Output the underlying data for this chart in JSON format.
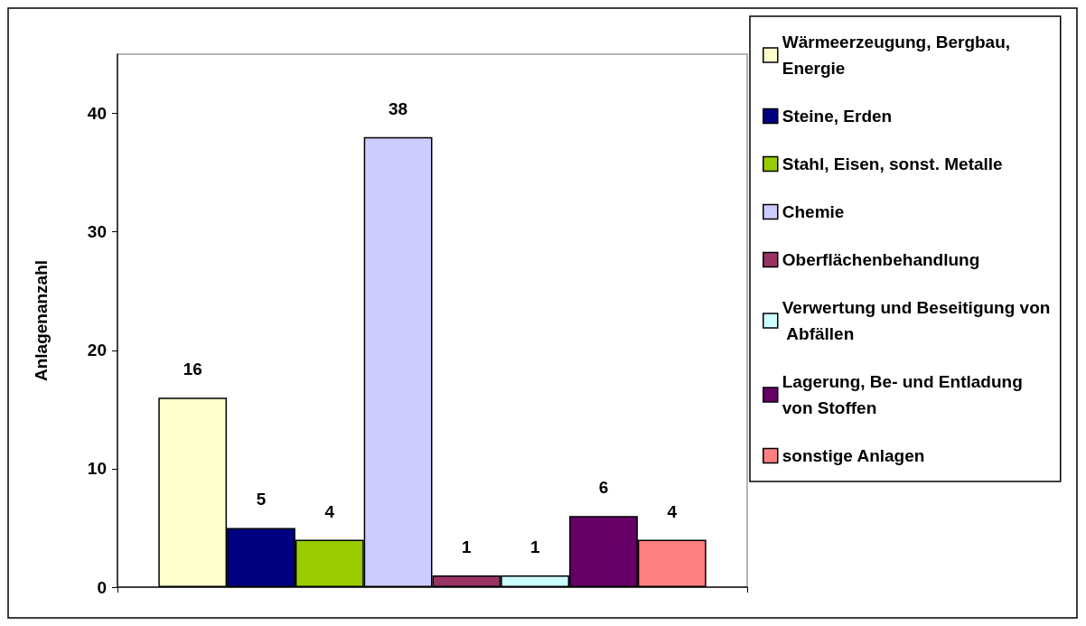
{
  "chart_data": {
    "type": "bar",
    "ylabel": "Anlagenanzahl",
    "categories": [
      null
    ],
    "ylim": [
      0,
      45
    ],
    "yticks": [
      0,
      10,
      20,
      30,
      40
    ],
    "grid": false,
    "legend": "right",
    "data_labels": true,
    "series": [
      {
        "name": "Wärmeerzeugung, Bergbau, Energie",
        "color": "#ffffcc",
        "values": [
          16
        ]
      },
      {
        "name": "Steine, Erden",
        "color": "#000080",
        "values": [
          5
        ]
      },
      {
        "name": "Stahl, Eisen, sonst. Metalle",
        "color": "#99cc00",
        "values": [
          4
        ]
      },
      {
        "name": "Chemie",
        "color": "#ccccff",
        "values": [
          38
        ]
      },
      {
        "name": "Oberflächenbehandlung",
        "color": "#993366",
        "values": [
          1
        ]
      },
      {
        "name": "Verwertung und Beseitigung von Abfällen",
        "color": "#ccffff",
        "values": [
          1
        ]
      },
      {
        "name": "Lagerung, Be- und Entladung von Stoffen",
        "color": "#660066",
        "values": [
          6
        ]
      },
      {
        "name": "sonstige Anlagen",
        "color": "#ff8080",
        "values": [
          4
        ]
      }
    ]
  }
}
